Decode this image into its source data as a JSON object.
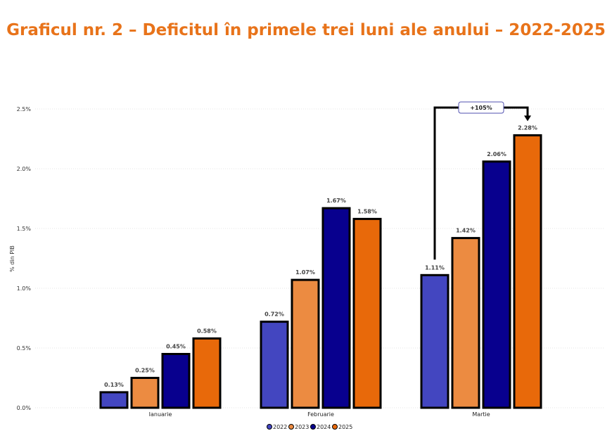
{
  "title": "Graficul nr. 2 – Deficitul în primele trei luni ale anului – 2022-2025",
  "chart_data": {
    "type": "bar",
    "ylabel": "% din PIB",
    "xlabel": "",
    "ylim": [
      0,
      2.5
    ],
    "yticks": [
      "0.0%",
      "0.5%",
      "1.0%",
      "1.5%",
      "2.0%",
      "2.5%"
    ],
    "ytick_values": [
      0,
      0.5,
      1.0,
      1.5,
      2.0,
      2.5
    ],
    "categories": [
      "Ianuarie",
      "Februarie",
      "Martie"
    ],
    "series": [
      {
        "name": "2022",
        "color": "#4346c0",
        "values": [
          0.13,
          0.72,
          1.11
        ],
        "labels": [
          "0.13%",
          "0.72%",
          "1.11%"
        ]
      },
      {
        "name": "2023",
        "color": "#ec8b41",
        "values": [
          0.25,
          1.07,
          1.42
        ],
        "labels": [
          "0.25%",
          "1.07%",
          "1.42%"
        ]
      },
      {
        "name": "2024",
        "color": "#08008e",
        "values": [
          0.45,
          1.67,
          2.06
        ],
        "labels": [
          "0.45%",
          "1.67%",
          "2.06%"
        ]
      },
      {
        "name": "2025",
        "color": "#e8690a",
        "values": [
          0.58,
          1.58,
          2.28
        ],
        "labels": [
          "0.58%",
          "1.58%",
          "2.28%"
        ]
      }
    ],
    "grid": true,
    "legend_position": "bottom",
    "annotation": {
      "text": "+105%",
      "from_series": "2022",
      "to_series": "2025",
      "category": "Martie"
    }
  }
}
